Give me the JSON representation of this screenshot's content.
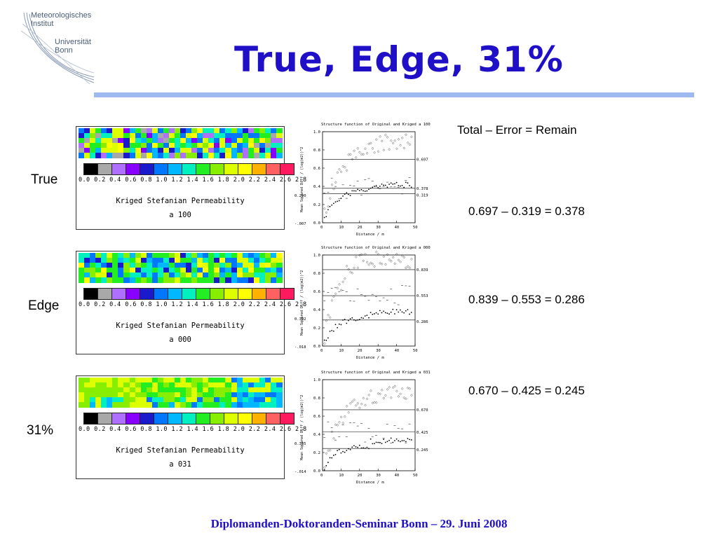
{
  "logo": {
    "line1": "Meteorologisches",
    "line2": "Institut",
    "line3": "Universität",
    "line4": "Bonn"
  },
  "title": "True, Edge, 31%",
  "rows": [
    {
      "label": "True",
      "map": {
        "title": "Kriged Stefanian Permeability",
        "subtitle": "a 100"
      },
      "plot": {
        "header": "Structure function of Original and Kriged a 100",
        "ylabel": "Mean Squared Diff / (log(m2))^2",
        "xlabel": "Distance / m",
        "left_ticks": [
          "0.290",
          "-.007"
        ],
        "right_ticks": [
          "0.697",
          "0.378",
          "0.319"
        ],
        "lines": [
          0.697,
          0.378,
          0.319
        ]
      },
      "equation": "0.697 – 0.319 = 0.378"
    },
    {
      "label": "Edge",
      "map": {
        "title": "Kriged Stefanian Permeability",
        "subtitle": "a 000"
      },
      "plot": {
        "header": "Structure function of Original and Kriged a 000",
        "ylabel": "Mean Squared Diff / (log(m2))^2",
        "xlabel": "Distance / m",
        "left_ticks": [
          "0.392",
          "-.018"
        ],
        "right_ticks": [
          "0.839",
          "0.553",
          "0.286"
        ],
        "lines": [
          0.839,
          0.553,
          0.286
        ]
      },
      "equation": "0.839 – 0.553 = 0.286"
    },
    {
      "label": "31%",
      "map": {
        "title": "Kriged Stefanian Permeability",
        "subtitle": "a 031"
      },
      "plot": {
        "header": "Structure function of Original and Kriged a 031",
        "ylabel": "Mean Squared Diff / (log(m2))^2",
        "xlabel": "Distance / m",
        "left_ticks": [
          "0.335",
          "-.014"
        ],
        "right_ticks": [
          "0.670",
          "0.425",
          "0.245"
        ],
        "lines": [
          0.67,
          0.425,
          0.245
        ]
      },
      "equation": "0.670 – 0.425 = 0.245"
    }
  ],
  "equation_header": "Total – Error = Remain",
  "scale": {
    "labels": "0.0  0.2  0.4  0.6  0.8  1.0  1.2  1.4  1.6  1.8  2.0  2.2  2.4  2.6  2.8",
    "colors": [
      "#000000",
      "#a8a8a8",
      "#b070ff",
      "#8800ff",
      "#1a1acc",
      "#0077ff",
      "#00b8ff",
      "#00f0c0",
      "#22ee22",
      "#88ee00",
      "#ddff00",
      "#ffff00",
      "#ffb000",
      "#ff6060",
      "#ff1a60"
    ]
  },
  "axis": {
    "x_ticks": [
      "0",
      "10",
      "20",
      "30",
      "40",
      "50"
    ],
    "y_ticks": [
      "1.0",
      "0.8",
      "0.6",
      "0.4",
      "0.2",
      "0.0"
    ]
  },
  "footer": "Diplomanden-Doktoranden-Seminar Bonn – 29. Juni 2008"
}
